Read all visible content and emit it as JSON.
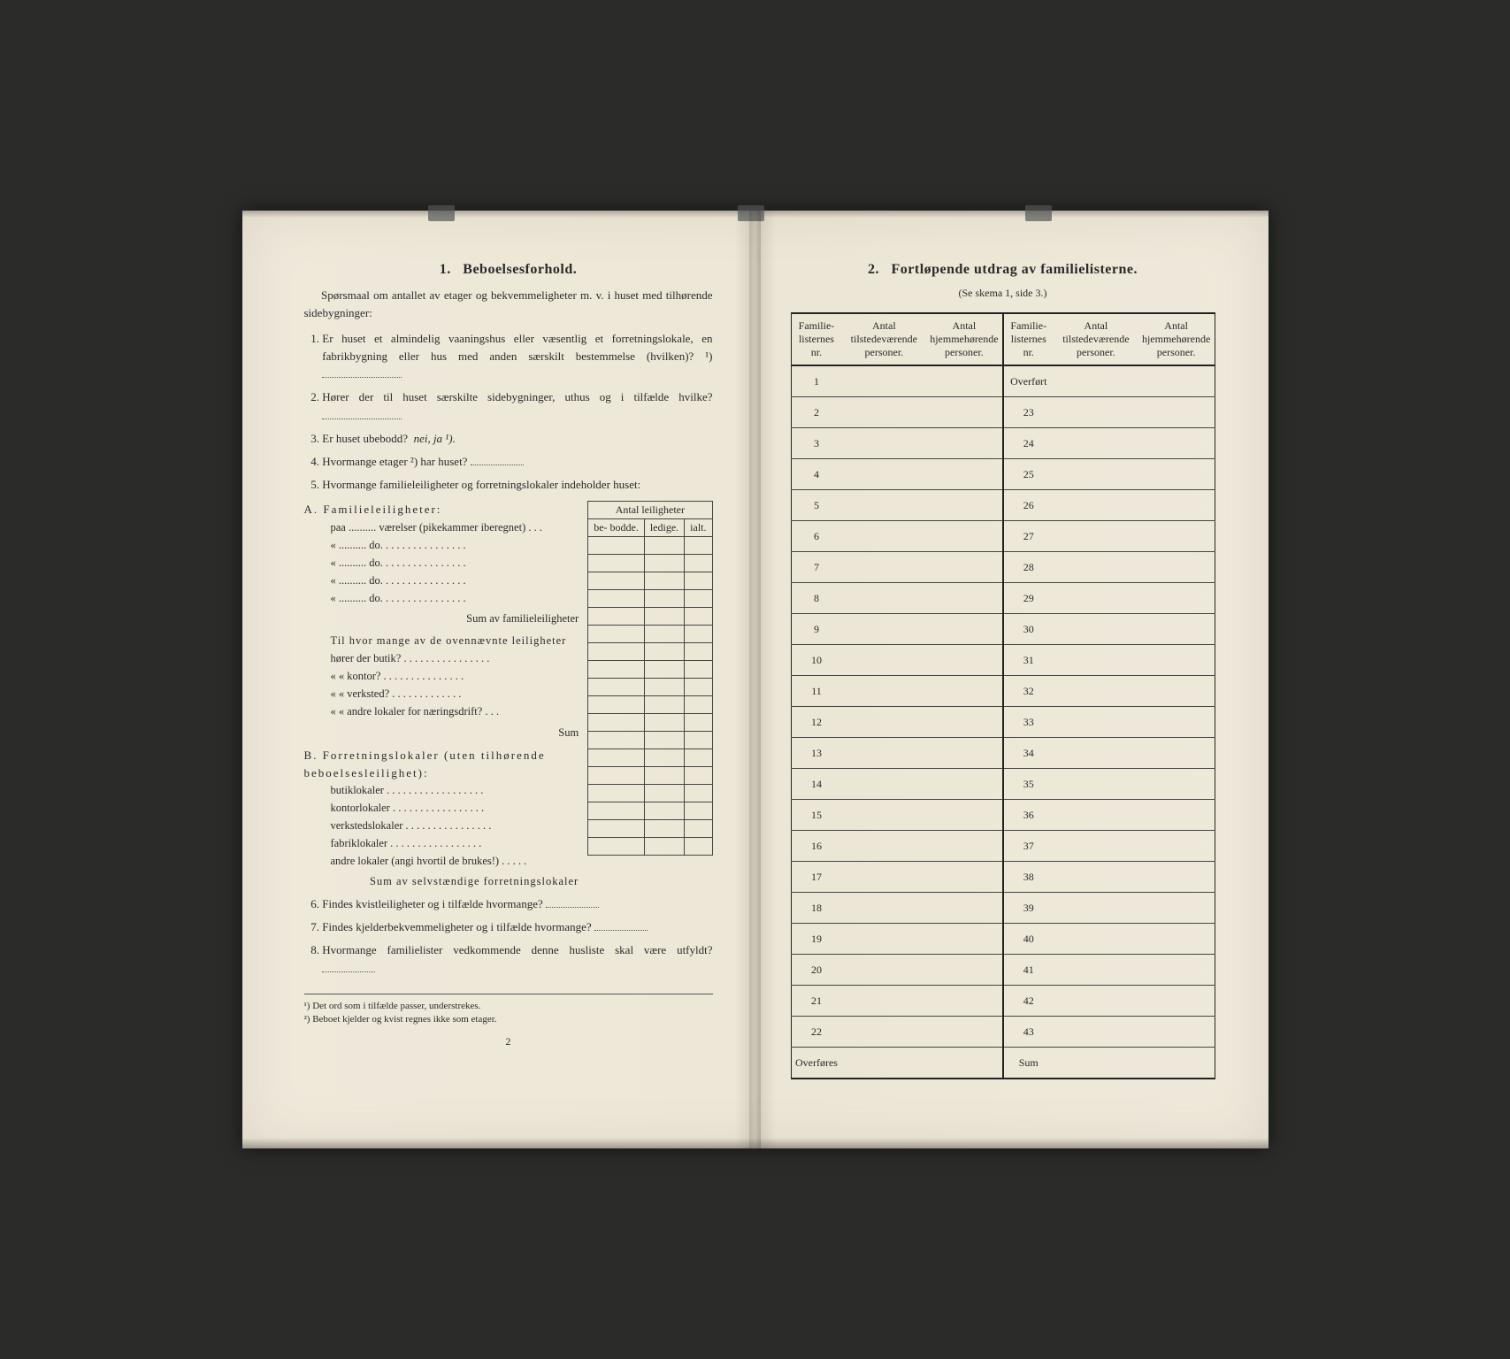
{
  "colors": {
    "paper": "#efe9db",
    "ink": "#2a2a2a",
    "rule": "#444444",
    "heavy_rule": "#222222",
    "background": "#2b2b29"
  },
  "typography": {
    "body_family": "Times New Roman serif",
    "body_size_pt": 13,
    "heading_size_pt": 16,
    "footnote_size_pt": 11,
    "table_size_pt": 12
  },
  "left": {
    "heading_num": "1.",
    "heading": "Beboelsesforhold.",
    "intro": "Spørsmaal om antallet av etager og bekvemmeligheter m. v. i huset med tilhørende sidebygninger:",
    "q1": "Er huset et almindelig vaaningshus eller væsentlig et forretningslokale, en fabrikbygning eller hus med anden særskilt bestemmelse (hvilken)? ¹)",
    "q2": "Hører der til huset særskilte sidebygninger, uthus og i tilfælde hvilke?",
    "q3_prefix": "Er huset ubebodd?",
    "q3_options": "nei,  ja ¹).",
    "q4": "Hvormange etager ²) har huset?",
    "q5": "Hvormange familieleiligheter og forretningslokaler indeholder huset:",
    "leil_table": {
      "header_group": "Antal leiligheter",
      "cols": [
        "be-\nbodde.",
        "ledige.",
        "ialt."
      ]
    },
    "A_head": "A. Familieleiligheter:",
    "A_rows": [
      "paa .......... værelser (pikekammer iberegnet) . . .",
      "«  ..........    do.    . . . . . . . . . . . . . . .",
      "«  ..........    do.    . . . . . . . . . . . . . . .",
      "«  ..........    do.    . . . . . . . . . . . . . . .",
      "«  ..........    do.    . . . . . . . . . . . . . . ."
    ],
    "A_sum": "Sum av familieleiligheter",
    "A_sub_intro": "Til hvor mange av de ovennævnte leiligheter",
    "A_sub": [
      "hører der butik? . . . . . . . . . . . . . . . .",
      "«   «  kontor? . . . . . . . . . . . . . . .",
      "«   «  verksted? . . . . . . . . . . . . .",
      "«   «  andre lokaler for næringsdrift? . . ."
    ],
    "A_sub_sum": "Sum",
    "B_head": "B. Forretningslokaler (uten tilhørende beboelsesleilighet):",
    "B_rows": [
      "butiklokaler . . . . . . . . . . . . . . . . . .",
      "kontorlokaler . . . . . . . . . . . . . . . . .",
      "verkstedslokaler . . . . . . . . . . . . . . . .",
      "fabriklokaler . . . . . . . . . . . . . . . . .",
      "andre lokaler (angi hvortil de brukes!) . . . . ."
    ],
    "B_sum": "Sum av selvstændige forretningslokaler",
    "q6": "Findes kvistleiligheter og i tilfælde hvormange?",
    "q7": "Findes kjelderbekvemmeligheter og i tilfælde hvormange?",
    "q8": "Hvormange familielister vedkommende denne husliste skal være utfyldt?",
    "fn1": "¹) Det ord som i tilfælde passer, understrekes.",
    "fn2": "²) Beboet kjelder og kvist regnes ikke som etager.",
    "page_num": "2"
  },
  "right": {
    "heading_num": "2.",
    "heading": "Fortløpende utdrag av familielisterne.",
    "subhead": "(Se skema 1, side 3.)",
    "columns": [
      "Familie-\nlisternes\nnr.",
      "Antal\ntilstedeværende\npersoner.",
      "Antal\nhjemmehørende\npersoner.",
      "Familie-\nlisternes\nnr.",
      "Antal\ntilstedeværende\npersoner.",
      "Antal\nhjemmehørende\npersoner."
    ],
    "col_widths_pct": [
      12,
      20,
      18,
      12,
      20,
      18
    ],
    "left_rows": [
      "1",
      "2",
      "3",
      "4",
      "5",
      "6",
      "7",
      "8",
      "9",
      "10",
      "11",
      "12",
      "13",
      "14",
      "15",
      "16",
      "17",
      "18",
      "19",
      "20",
      "21",
      "22",
      "Overføres"
    ],
    "right_rows": [
      "Overført",
      "23",
      "24",
      "25",
      "26",
      "27",
      "28",
      "29",
      "30",
      "31",
      "32",
      "33",
      "34",
      "35",
      "36",
      "37",
      "38",
      "39",
      "40",
      "41",
      "42",
      "43",
      "Sum"
    ]
  }
}
